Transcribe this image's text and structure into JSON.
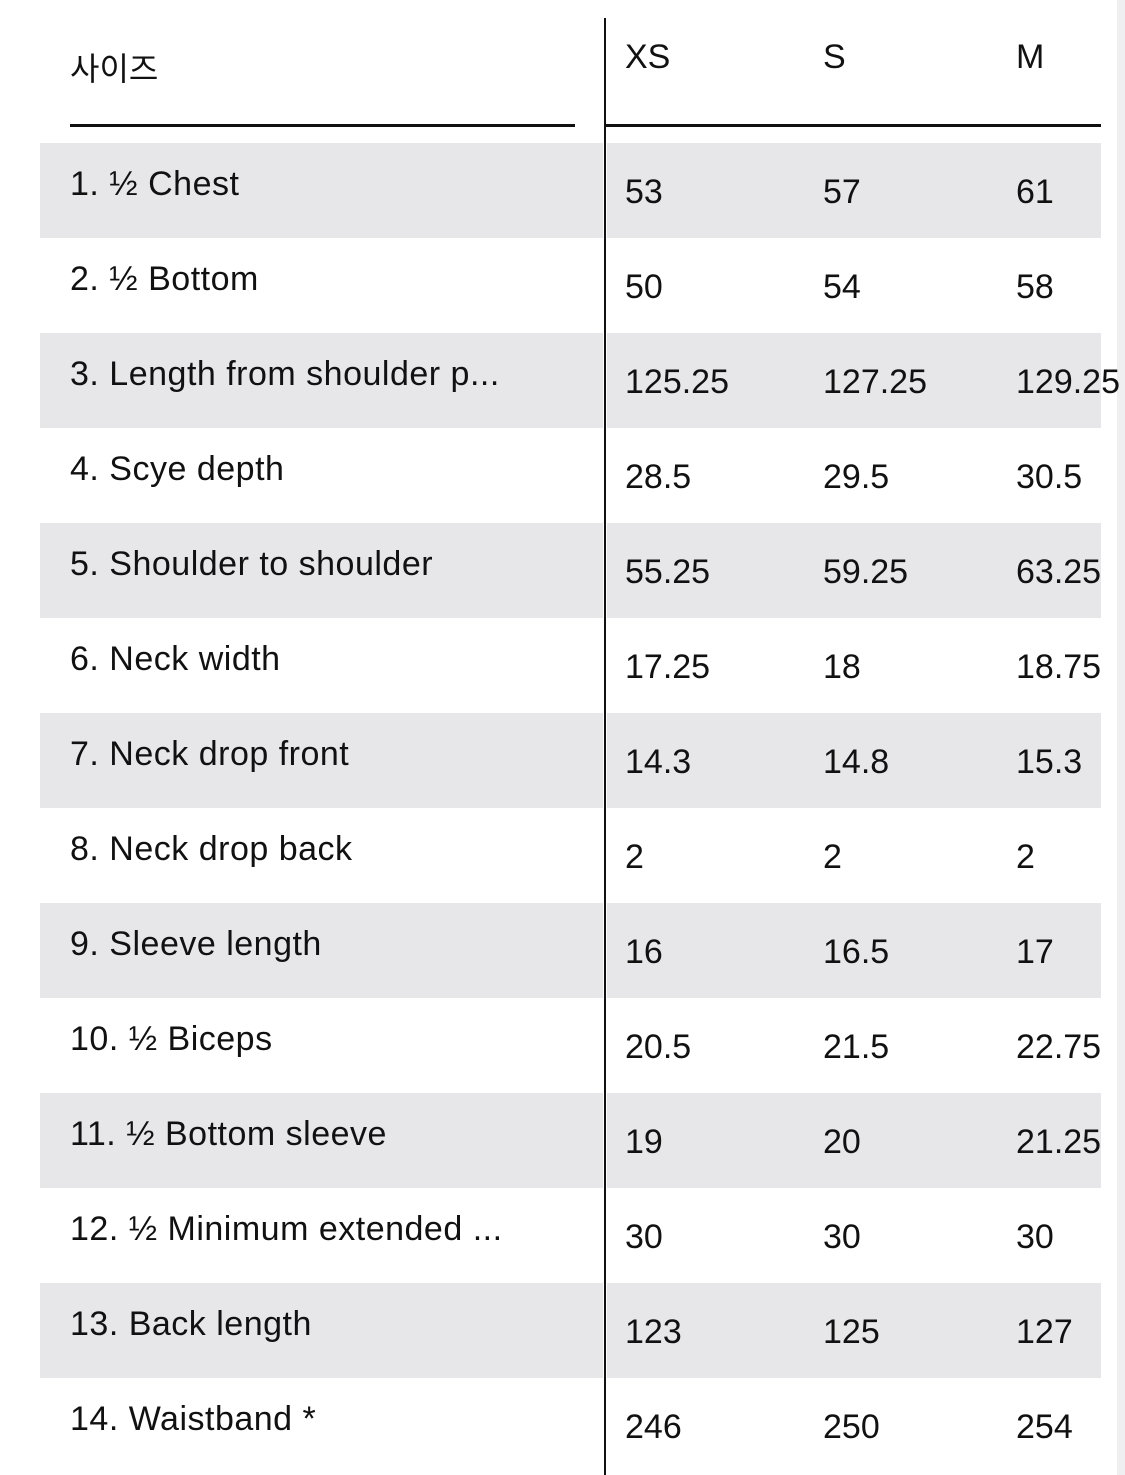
{
  "header": {
    "label": "사이즈",
    "sizes": [
      "XS",
      "S",
      "M"
    ]
  },
  "rows": [
    {
      "label": "1. ½ Chest",
      "values": [
        "53",
        "57",
        "61"
      ]
    },
    {
      "label": "2. ½ Bottom",
      "values": [
        "50",
        "54",
        "58"
      ]
    },
    {
      "label": "3. Length from shoulder p...",
      "values": [
        "125.25",
        "127.25",
        "129.25"
      ]
    },
    {
      "label": "4. Scye depth",
      "values": [
        "28.5",
        "29.5",
        "30.5"
      ]
    },
    {
      "label": "5. Shoulder to shoulder",
      "values": [
        "55.25",
        "59.25",
        "63.25"
      ]
    },
    {
      "label": "6. Neck width",
      "values": [
        "17.25",
        "18",
        "18.75"
      ]
    },
    {
      "label": "7. Neck drop front",
      "values": [
        "14.3",
        "14.8",
        "15.3"
      ]
    },
    {
      "label": "8. Neck drop back",
      "values": [
        "2",
        "2",
        "2"
      ]
    },
    {
      "label": "9. Sleeve length",
      "values": [
        "16",
        "16.5",
        "17"
      ]
    },
    {
      "label": "10. ½ Biceps",
      "values": [
        "20.5",
        "21.5",
        "22.75"
      ]
    },
    {
      "label": "11. ½ Bottom sleeve",
      "values": [
        "19",
        "20",
        "21.25"
      ]
    },
    {
      "label": "12. ½ Minimum extended ...",
      "values": [
        "30",
        "30",
        "30"
      ]
    },
    {
      "label": "13. Back length",
      "values": [
        "123",
        "125",
        "127"
      ]
    },
    {
      "label": "14. Waistband *",
      "values": [
        "246",
        "250",
        "254"
      ]
    }
  ],
  "colors": {
    "stripe": "#e7e7ea",
    "text": "#111111"
  }
}
